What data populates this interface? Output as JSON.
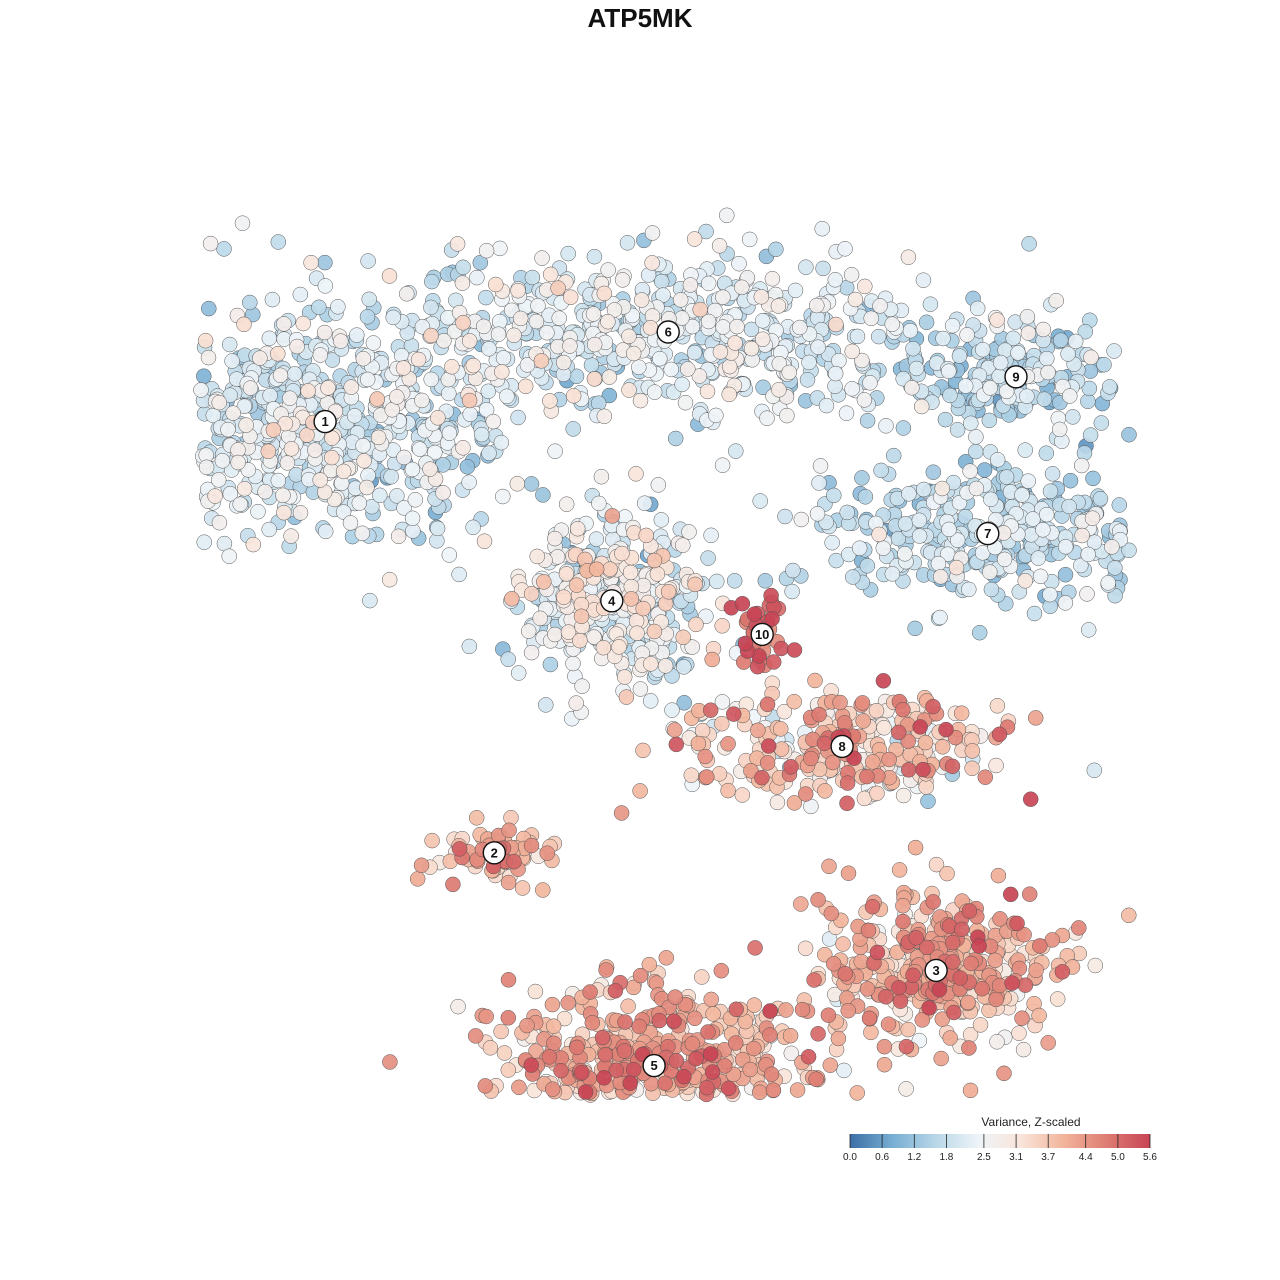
{
  "chart_data": {
    "type": "scatter",
    "title": "ATP5MK",
    "xlabel": "",
    "ylabel": "",
    "grid": false,
    "legend": {
      "title": "Variance, Z-scaled",
      "placement": "bottom-right",
      "ticks": [
        "0.0",
        "0.6",
        "1.2",
        "1.8",
        "2.5",
        "3.1",
        "3.7",
        "4.4",
        "5.0",
        "5.6"
      ],
      "range": [
        0,
        5.6
      ]
    },
    "color_scale": [
      "#3c6fa6",
      "#78aed3",
      "#b9d7e8",
      "#eef4f8",
      "#f9e4d9",
      "#f2b49b",
      "#dd7b72",
      "#c84455"
    ],
    "clusters": [
      {
        "label": "1",
        "x": -0.67,
        "y": 0.39,
        "spread": [
          0.2,
          0.11
        ],
        "n": 700,
        "mean": 2.1,
        "sd": 0.55
      },
      {
        "label": "2",
        "x": -0.31,
        "y": -0.38,
        "spread": [
          0.06,
          0.03
        ],
        "n": 70,
        "mean": 4.1,
        "sd": 0.5
      },
      {
        "label": "3",
        "x": 0.63,
        "y": -0.59,
        "spread": [
          0.13,
          0.07
        ],
        "n": 420,
        "mean": 4.0,
        "sd": 0.7
      },
      {
        "label": "4",
        "x": -0.06,
        "y": 0.07,
        "spread": [
          0.1,
          0.08
        ],
        "n": 420,
        "mean": 2.3,
        "sd": 0.7
      },
      {
        "label": "5",
        "x": 0.03,
        "y": -0.76,
        "spread": [
          0.17,
          0.07
        ],
        "n": 560,
        "mean": 4.0,
        "sd": 0.7
      },
      {
        "label": "6",
        "x": 0.06,
        "y": 0.55,
        "spread": [
          0.3,
          0.07
        ],
        "n": 620,
        "mean": 2.2,
        "sd": 0.5
      },
      {
        "label": "7",
        "x": 0.74,
        "y": 0.19,
        "spread": [
          0.18,
          0.06
        ],
        "n": 380,
        "mean": 1.8,
        "sd": 0.5
      },
      {
        "label": "8",
        "x": 0.43,
        "y": -0.19,
        "spread": [
          0.18,
          0.05
        ],
        "n": 300,
        "mean": 3.6,
        "sd": 0.9
      },
      {
        "label": "9",
        "x": 0.8,
        "y": 0.47,
        "spread": [
          0.12,
          0.05
        ],
        "n": 200,
        "mean": 1.6,
        "sd": 0.5
      },
      {
        "label": "10",
        "x": 0.26,
        "y": 0.01,
        "spread": [
          0.03,
          0.03
        ],
        "n": 40,
        "mean": 5.0,
        "sd": 0.5
      }
    ]
  }
}
